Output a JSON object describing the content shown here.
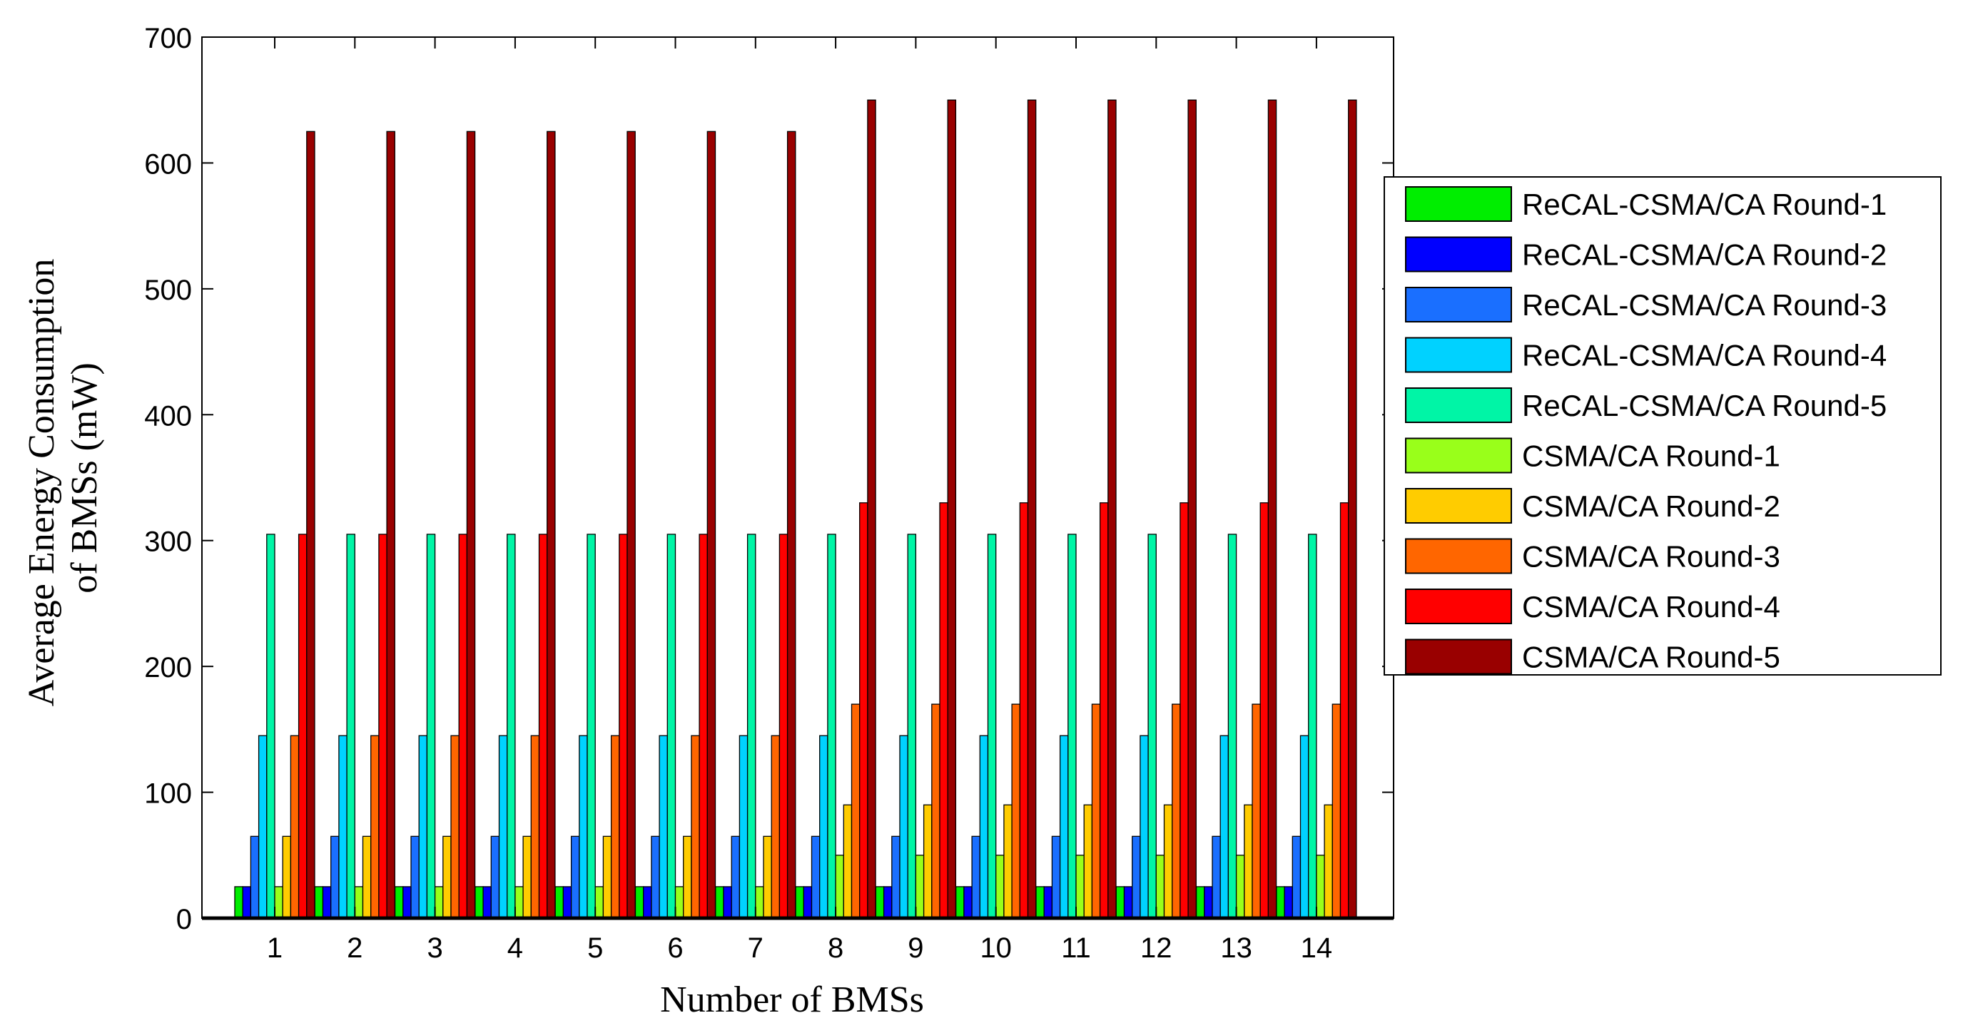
{
  "chart_data": {
    "type": "bar",
    "title": "",
    "xlabel": "Number of BMSs",
    "ylabel_lines": [
      "Average Energy Consumption",
      "of BMSs (mW)"
    ],
    "ylim": [
      0,
      700
    ],
    "yticks": [
      0,
      100,
      200,
      300,
      400,
      500,
      600,
      700
    ],
    "grid": false,
    "legend_position": "right",
    "categories": [
      "1",
      "2",
      "3",
      "4",
      "5",
      "6",
      "7",
      "8",
      "9",
      "10",
      "11",
      "12",
      "13",
      "14"
    ],
    "series": [
      {
        "name": "ReCAL-CSMA/CA Round-1",
        "color": "#00ee00",
        "values": [
          25,
          25,
          25,
          25,
          25,
          25,
          25,
          25,
          25,
          25,
          25,
          25,
          25,
          25
        ]
      },
      {
        "name": "ReCAL-CSMA/CA Round-2",
        "color": "#0000ff",
        "values": [
          25,
          25,
          25,
          25,
          25,
          25,
          25,
          25,
          25,
          25,
          25,
          25,
          25,
          25
        ]
      },
      {
        "name": "ReCAL-CSMA/CA Round-3",
        "color": "#1a6fff",
        "values": [
          65,
          65,
          65,
          65,
          65,
          65,
          65,
          65,
          65,
          65,
          65,
          65,
          65,
          65
        ]
      },
      {
        "name": "ReCAL-CSMA/CA Round-4",
        "color": "#00d2ff",
        "values": [
          145,
          145,
          145,
          145,
          145,
          145,
          145,
          145,
          145,
          145,
          145,
          145,
          145,
          145
        ]
      },
      {
        "name": "ReCAL-CSMA/CA Round-5",
        "color": "#00f5a6",
        "values": [
          305,
          305,
          305,
          305,
          305,
          305,
          305,
          305,
          305,
          305,
          305,
          305,
          305,
          305
        ]
      },
      {
        "name": "CSMA/CA Round-1",
        "color": "#99ff1a",
        "values": [
          25,
          25,
          25,
          25,
          25,
          25,
          25,
          50,
          50,
          50,
          50,
          50,
          50,
          50
        ]
      },
      {
        "name": "CSMA/CA Round-2",
        "color": "#ffcc00",
        "values": [
          65,
          65,
          65,
          65,
          65,
          65,
          65,
          90,
          90,
          90,
          90,
          90,
          90,
          90
        ]
      },
      {
        "name": "CSMA/CA Round-3",
        "color": "#ff6600",
        "values": [
          145,
          145,
          145,
          145,
          145,
          145,
          145,
          170,
          170,
          170,
          170,
          170,
          170,
          170
        ]
      },
      {
        "name": "CSMA/CA Round-4",
        "color": "#ff0000",
        "values": [
          305,
          305,
          305,
          305,
          305,
          305,
          305,
          330,
          330,
          330,
          330,
          330,
          330,
          330
        ]
      },
      {
        "name": "CSMA/CA Round-5",
        "color": "#990000",
        "values": [
          625,
          625,
          625,
          625,
          625,
          625,
          625,
          650,
          650,
          650,
          650,
          650,
          650,
          650
        ]
      }
    ]
  }
}
